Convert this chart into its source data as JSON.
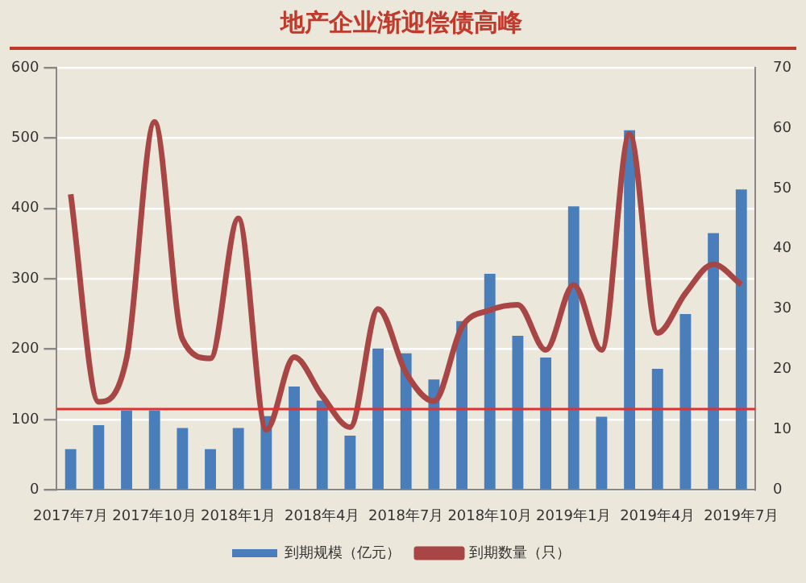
{
  "chart_data": {
    "type": "bar",
    "title": "地产企业渐迎偿债高峰",
    "categories": [
      "2017年7月",
      null,
      null,
      "2017年10月",
      null,
      null,
      "2018年1月",
      null,
      null,
      "2018年4月",
      null,
      null,
      "2018年7月",
      null,
      null,
      "2018年10月",
      null,
      null,
      "2019年1月",
      null,
      null,
      "2019年4月",
      null,
      null,
      "2019年7月"
    ],
    "series": [
      {
        "name": "到期规模（亿元）",
        "color": "#4a7ebb",
        "values": [
          58,
          92,
          113,
          113,
          88,
          58,
          88,
          105,
          147,
          127,
          77,
          201,
          194,
          157,
          240,
          307,
          219,
          188,
          403,
          104,
          511,
          172,
          250,
          365,
          427
        ]
      },
      {
        "name": "到期数量（只）",
        "type": "line",
        "axis": "y2",
        "color": "#a84545",
        "values": [
          49,
          14.6,
          21.8,
          61,
          25,
          21.8,
          45,
          10,
          22,
          15.6,
          10.4,
          30,
          19.4,
          14.7,
          27,
          29.8,
          30.7,
          23.2,
          34,
          23.2,
          59,
          26,
          32.6,
          37.4,
          34
        ]
      }
    ],
    "ylim": [
      0,
      600
    ],
    "yticks": [
      0,
      100,
      200,
      300,
      400,
      500,
      600
    ],
    "y2lim": [
      0,
      70
    ],
    "y2ticks": [
      0,
      10,
      20,
      30,
      40,
      50,
      60,
      70
    ],
    "ref_lines": [
      {
        "axis": "y",
        "value": 115,
        "color": "#e03030"
      }
    ],
    "grid": "y",
    "legend": "bottom",
    "marker": "none",
    "line_style": "solid"
  }
}
